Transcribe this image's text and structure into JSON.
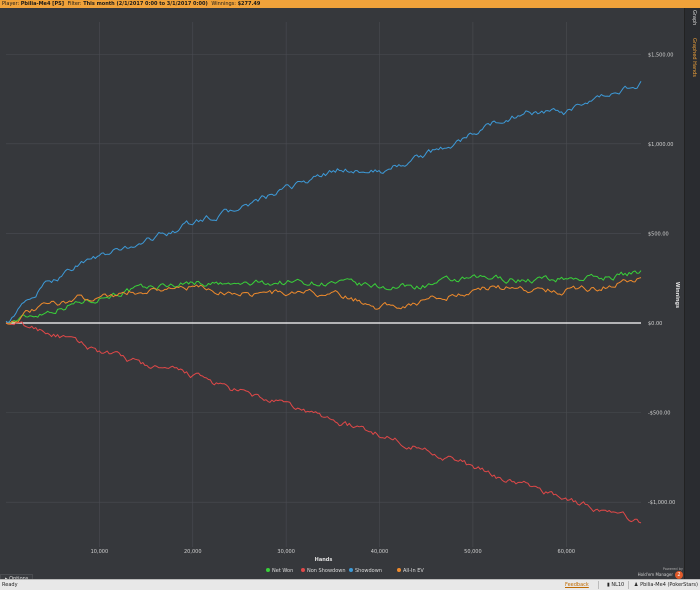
{
  "topbar": {
    "player_label": "Player:",
    "player_value": "Pbilia-Me4 [PS]",
    "filter_label": "Filter:",
    "filter_value": "This month (2/1/2017 0:00 to 3/1/2017 0:00)",
    "winnings_label": "Winnings:",
    "winnings_value": "$277.49"
  },
  "right_tabs": [
    "Graph",
    "Graphed Hands"
  ],
  "options_label": "Options",
  "logo": {
    "powered_by": "Powered by",
    "brand": "Hold'em Manager",
    "badge": "2"
  },
  "status": {
    "ready": "Ready",
    "feedback": "Feedback",
    "stake": "NL10",
    "player": "Pbilia-Me4 (PokerStars)"
  },
  "colors": {
    "net_won": "#39d139",
    "non_showdown": "#e04848",
    "showdown": "#3d9ad8",
    "allin_ev": "#ee8a2c",
    "zero_line": "#ffffff",
    "accent": "#f0a23a"
  },
  "chart_data": {
    "type": "line",
    "xlabel": "Hands",
    "ylabel": "Winnings",
    "xlim": [
      0,
      68000
    ],
    "ylim": [
      -1250,
      1680
    ],
    "xticks": [
      10000,
      20000,
      30000,
      40000,
      50000,
      60000
    ],
    "xtick_labels": [
      "10,000",
      "20,000",
      "30,000",
      "40,000",
      "50,000",
      "60,000"
    ],
    "yticks": [
      -1000,
      -500,
      0,
      500,
      1000,
      1500
    ],
    "ytick_labels": [
      "-$1,000.00",
      "-$500.00",
      "$0.00",
      "$500.00",
      "$1,000.00",
      "$1,500.00"
    ],
    "legend_position": "bottom-center",
    "grid": true,
    "x": [
      0,
      4000,
      8000,
      12000,
      16000,
      20000,
      24000,
      28000,
      32000,
      36000,
      40000,
      44000,
      48000,
      52000,
      56000,
      60000,
      64000,
      68000
    ],
    "series": [
      {
        "name": "Net Won",
        "values": [
          0,
          60,
          120,
          170,
          200,
          230,
          210,
          225,
          230,
          220,
          200,
          205,
          235,
          250,
          240,
          250,
          255,
          285
        ]
      },
      {
        "name": "Non Showdown",
        "values": [
          0,
          -40,
          -120,
          -190,
          -250,
          -290,
          -370,
          -430,
          -490,
          -560,
          -620,
          -690,
          -760,
          -850,
          -910,
          -980,
          -1050,
          -1110
        ]
      },
      {
        "name": "Showdown",
        "values": [
          10,
          200,
          340,
          400,
          480,
          560,
          620,
          700,
          790,
          860,
          840,
          920,
          1000,
          1110,
          1180,
          1170,
          1260,
          1340
        ]
      },
      {
        "name": "All-In EV",
        "values": [
          0,
          90,
          140,
          160,
          190,
          200,
          170,
          165,
          170,
          150,
          90,
          115,
          160,
          200,
          190,
          185,
          205,
          255
        ]
      }
    ]
  }
}
